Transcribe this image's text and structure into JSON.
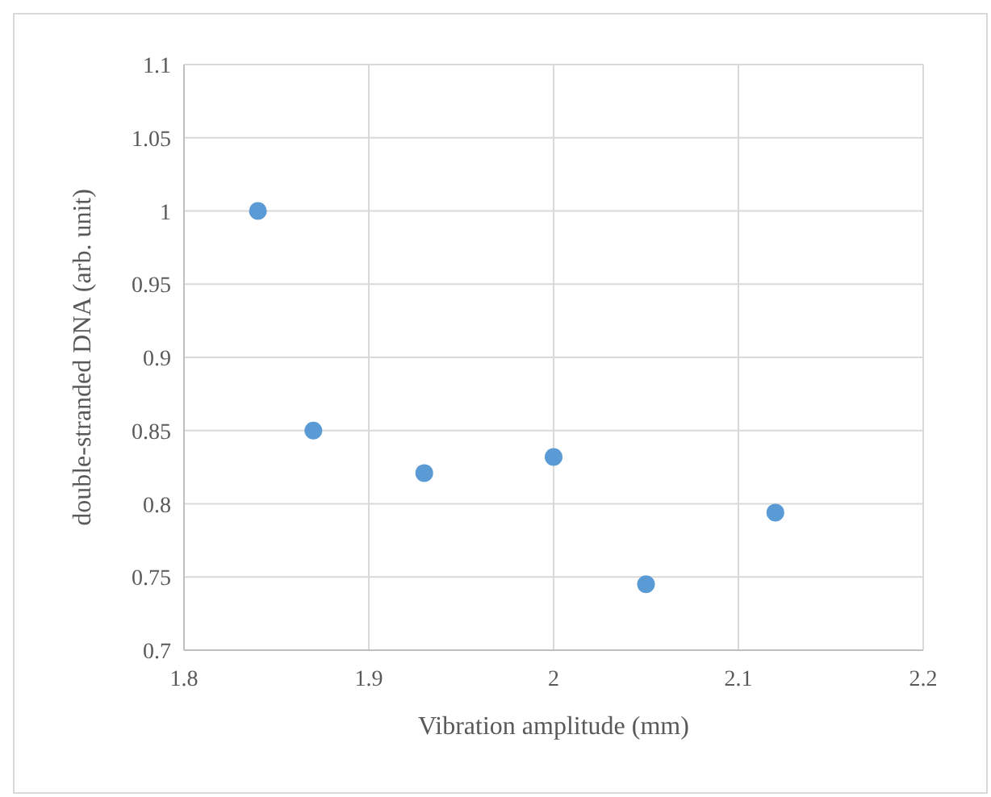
{
  "chart_data": {
    "type": "scatter",
    "xlabel": "Vibration amplitude (mm)",
    "ylabel": "double-stranded DNA (arb. unit)",
    "x": [
      1.84,
      1.87,
      1.93,
      2.0,
      2.05,
      2.12
    ],
    "series": [
      {
        "color": "#5b9bd5",
        "values": [
          1.0,
          0.85,
          0.821,
          0.832,
          0.745,
          0.794
        ]
      }
    ],
    "xlim": [
      1.8,
      2.2
    ],
    "xticks": [
      1.8,
      1.9,
      2,
      2.1,
      2.2
    ],
    "ylim": [
      0.7,
      1.1
    ],
    "yticks": [
      0.7,
      0.75,
      0.8,
      0.85,
      0.9,
      0.95,
      1,
      1.05,
      1.1
    ],
    "grid": true,
    "marker": "circle"
  }
}
